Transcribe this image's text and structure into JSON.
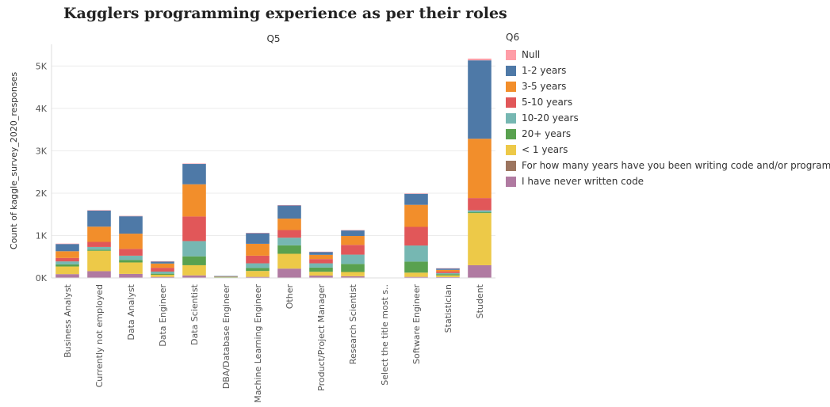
{
  "chart_data": {
    "type": "bar",
    "stacked": true,
    "title": "Kagglers programming experience as per their roles",
    "column_header": "Q5",
    "ylabel": "Count of kaggle_survey_2020_responses",
    "yticks": [
      "0K",
      "1K",
      "2K",
      "3K",
      "4K",
      "5K"
    ],
    "ylim": [
      0,
      5400
    ],
    "grid": true,
    "legend_position": "right",
    "legend_title": "Q6",
    "categories": [
      "Business Analyst",
      "Currently not employed",
      "Data Analyst",
      "Data Engineer",
      "Data Scientist",
      "DBA/Database Engineer",
      "Machine Learning Engineer",
      "Other",
      "Product/Project Manager",
      "Research Scientist",
      "Select the title most s..",
      "Software Engineer",
      "Statistician",
      "Student"
    ],
    "series": [
      {
        "name": "I have never written code",
        "color": "#b07aa1",
        "values": [
          90,
          160,
          95,
          25,
          60,
          5,
          25,
          220,
          55,
          40,
          0,
          25,
          20,
          300
        ]
      },
      {
        "name": "For how many years have you been writing code and/or programming",
        "color": "#9c755f",
        "values": [
          0,
          0,
          0,
          0,
          0,
          0,
          0,
          0,
          0,
          0,
          0,
          0,
          0,
          0
        ]
      },
      {
        "name": "< 1 years",
        "color": "#edc948",
        "values": [
          180,
          480,
          270,
          50,
          240,
          10,
          140,
          350,
          90,
          100,
          0,
          100,
          40,
          1230
        ]
      },
      {
        "name": "20+ years",
        "color": "#59a14f",
        "values": [
          50,
          25,
          60,
          25,
          210,
          8,
          70,
          200,
          100,
          190,
          0,
          260,
          30,
          20
        ]
      },
      {
        "name": "10-20 years",
        "color": "#76b7b2",
        "values": [
          70,
          65,
          100,
          50,
          360,
          8,
          110,
          180,
          100,
          220,
          0,
          380,
          25,
          45
        ]
      },
      {
        "name": "5-10 years",
        "color": "#e15759",
        "values": [
          80,
          120,
          160,
          90,
          580,
          6,
          180,
          180,
          100,
          230,
          0,
          440,
          35,
          290
        ]
      },
      {
        "name": "3-5 years",
        "color": "#f28e2b",
        "values": [
          160,
          360,
          360,
          100,
          760,
          5,
          280,
          270,
          100,
          210,
          0,
          520,
          40,
          1400
        ]
      },
      {
        "name": "1-2 years",
        "color": "#4e79a7",
        "values": [
          170,
          380,
          410,
          50,
          480,
          3,
          250,
          310,
          70,
          130,
          0,
          260,
          35,
          1850
        ]
      },
      {
        "name": "Null",
        "color": "#ff9da7",
        "values": [
          10,
          10,
          10,
          5,
          10,
          0,
          10,
          10,
          5,
          10,
          0,
          10,
          5,
          40
        ]
      }
    ],
    "legend_order": [
      "Null",
      "1-2 years",
      "3-5 years",
      "5-10 years",
      "10-20 years",
      "20+ years",
      "< 1 years",
      "For how many years have you been writing code and/or programming",
      "I have never written code"
    ]
  }
}
